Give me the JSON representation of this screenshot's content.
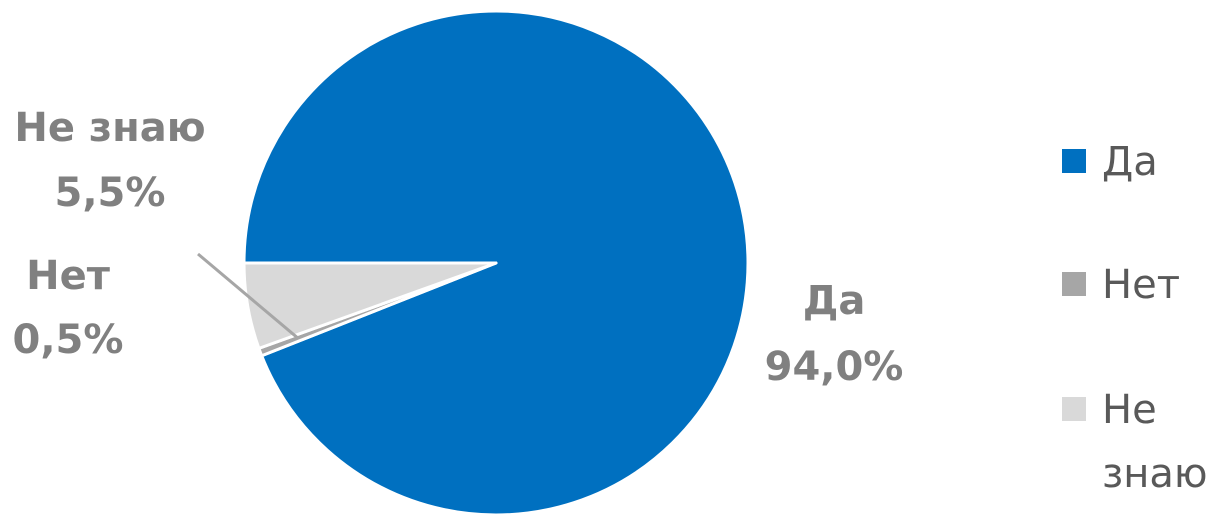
{
  "chart_data": {
    "type": "pie",
    "categories": [
      "Да",
      "Нет",
      "Не знаю"
    ],
    "values": [
      94.0,
      0.5,
      5.5
    ],
    "value_labels": [
      "94,0%",
      "0,5%",
      "5,5%"
    ],
    "colors": [
      "#0070C0",
      "#A6A6A6",
      "#D9D9D9"
    ],
    "legend": {
      "position": "right",
      "lines": [
        [
          "Да"
        ],
        [
          "Нет"
        ],
        [
          "Не",
          "знаю"
        ]
      ]
    },
    "title": ""
  }
}
